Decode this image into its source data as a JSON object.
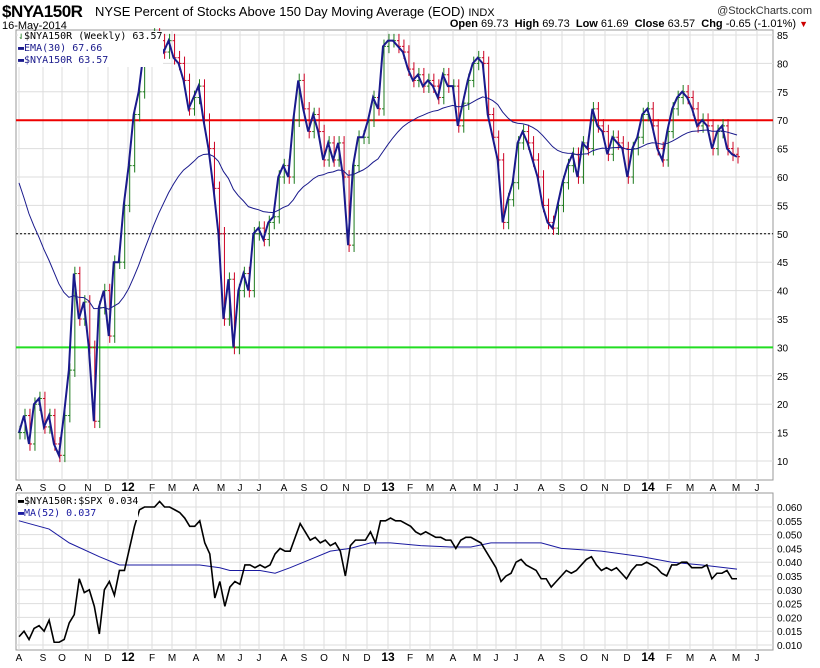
{
  "header": {
    "symbol": "$NYA150R",
    "description": "NYSE Percent of Stocks Above 150 Day Moving Average (EOD)",
    "exchange": "INDX",
    "date": "16-May-2014",
    "brand": "@StockCharts.com",
    "open_label": "Open",
    "open": "69.73",
    "high_label": "High",
    "high": "69.73",
    "low_label": "Low",
    "low": "61.69",
    "close_label": "Close",
    "close": "63.57",
    "chg_label": "Chg",
    "chg": "-0.65 (-1.01%)"
  },
  "colors": {
    "price": "#1a1a8c",
    "ema": "#1a1a8c",
    "up": "#1c7a1c",
    "down": "#cc0022",
    "red_line": "#ee0000",
    "green_line": "#22dd22",
    "ratio": "#000000",
    "ma": "#1a1aa0"
  },
  "chart_data": [
    {
      "type": "line",
      "title": "$NYA150R (Weekly) 63.57",
      "legend": [
        "$NYA150R (Weekly) 63.57",
        "EMA(30) 67.66",
        "$NYA150R 63.57"
      ],
      "ylim": [
        8,
        86
      ],
      "yticks": [
        10,
        15,
        20,
        25,
        30,
        35,
        40,
        45,
        50,
        55,
        60,
        65,
        70,
        75,
        80,
        85
      ],
      "reference_lines": [
        {
          "value": 70,
          "color": "red"
        },
        {
          "value": 50,
          "color": "black-dashed"
        },
        {
          "value": 30,
          "color": "green"
        }
      ],
      "xticks": [
        "A",
        "S",
        "O",
        "N",
        "D",
        "12",
        "F",
        "M",
        "A",
        "M",
        "J",
        "J",
        "A",
        "S",
        "O",
        "N",
        "D",
        "13",
        "F",
        "M",
        "A",
        "M",
        "J",
        "J",
        "A",
        "S",
        "O",
        "N",
        "D",
        "14",
        "F",
        "M",
        "A",
        "M",
        "J"
      ],
      "weekly_close": [
        15,
        18,
        13,
        20,
        21,
        16,
        18,
        13,
        11,
        18,
        26,
        43,
        35,
        38,
        30,
        17,
        37,
        40,
        32,
        45,
        45,
        55,
        62,
        71,
        75,
        82,
        82,
        85,
        84,
        82,
        84,
        81,
        80,
        77,
        72,
        74,
        76,
        70,
        65,
        58,
        50,
        35,
        42,
        30,
        40,
        43,
        40,
        50,
        51,
        49,
        52,
        53,
        60,
        62,
        60,
        70,
        77,
        72,
        68,
        71,
        68,
        63,
        66,
        63,
        66,
        60,
        48,
        62,
        67,
        67,
        70,
        74,
        72,
        83,
        84,
        84,
        83,
        82,
        79,
        77,
        78,
        76,
        77,
        76,
        74,
        78,
        76,
        76,
        69,
        73,
        77,
        80,
        81,
        80,
        71,
        67,
        63,
        52,
        56,
        59,
        66,
        68,
        66,
        63,
        60,
        55,
        52,
        51,
        55,
        59,
        62,
        64,
        60,
        66,
        65,
        72,
        69,
        68,
        64,
        67,
        66,
        65,
        60,
        65,
        67,
        71,
        72,
        69,
        65,
        63,
        68,
        72,
        74,
        75,
        74,
        72,
        69,
        70,
        69,
        65,
        68,
        69,
        65,
        64,
        63.57
      ],
      "ema30_seed": 62
    },
    {
      "type": "line",
      "legend": [
        "$NYA150R:$SPX 0.034",
        "MA(52) 0.037"
      ],
      "ylim": [
        0.008,
        0.0625
      ],
      "yticks": [
        "0.010",
        "0.015",
        "0.020",
        "0.025",
        "0.030",
        "0.035",
        "0.040",
        "0.045",
        "0.050",
        "0.055",
        "0.060"
      ],
      "ratio": [
        0.013,
        0.015,
        0.012,
        0.016,
        0.017,
        0.015,
        0.019,
        0.011,
        0.011,
        0.012,
        0.018,
        0.021,
        0.034,
        0.029,
        0.03,
        0.024,
        0.014,
        0.03,
        0.033,
        0.028,
        0.037,
        0.037,
        0.045,
        0.053,
        0.059,
        0.06,
        0.06,
        0.06,
        0.062,
        0.06,
        0.06,
        0.059,
        0.058,
        0.056,
        0.053,
        0.053,
        0.055,
        0.047,
        0.043,
        0.027,
        0.033,
        0.024,
        0.031,
        0.033,
        0.032,
        0.039,
        0.039,
        0.038,
        0.039,
        0.038,
        0.039,
        0.043,
        0.045,
        0.044,
        0.044,
        0.049,
        0.054,
        0.051,
        0.048,
        0.049,
        0.047,
        0.048,
        0.046,
        0.047,
        0.044,
        0.035,
        0.046,
        0.048,
        0.048,
        0.048,
        0.051,
        0.047,
        0.055,
        0.055,
        0.056,
        0.055,
        0.055,
        0.054,
        0.053,
        0.051,
        0.05,
        0.051,
        0.05,
        0.049,
        0.049,
        0.048,
        0.048,
        0.045,
        0.048,
        0.049,
        0.049,
        0.048,
        0.047,
        0.044,
        0.041,
        0.038,
        0.033,
        0.035,
        0.036,
        0.04,
        0.041,
        0.039,
        0.038,
        0.037,
        0.034,
        0.034,
        0.031,
        0.033,
        0.035,
        0.037,
        0.036,
        0.037,
        0.039,
        0.041,
        0.042,
        0.039,
        0.037,
        0.038,
        0.037,
        0.038,
        0.036,
        0.034,
        0.037,
        0.039,
        0.039,
        0.04,
        0.039,
        0.038,
        0.036,
        0.035,
        0.039,
        0.039,
        0.04,
        0.04,
        0.038,
        0.038,
        0.038,
        0.039,
        0.034,
        0.036,
        0.036,
        0.037,
        0.034,
        0.034
      ],
      "ma52": [
        [
          0,
          0.055
        ],
        [
          6,
          0.052
        ],
        [
          10,
          0.047
        ],
        [
          16,
          0.042
        ],
        [
          20,
          0.039
        ],
        [
          24,
          0.039
        ],
        [
          36,
          0.039
        ],
        [
          40,
          0.038
        ],
        [
          42,
          0.037
        ],
        [
          48,
          0.037
        ],
        [
          51,
          0.036
        ],
        [
          54,
          0.038
        ],
        [
          58,
          0.041
        ],
        [
          62,
          0.044
        ],
        [
          66,
          0.045
        ],
        [
          70,
          0.047
        ],
        [
          74,
          0.047
        ],
        [
          80,
          0.046
        ],
        [
          86,
          0.0455
        ],
        [
          90,
          0.0455
        ],
        [
          94,
          0.047
        ],
        [
          104,
          0.047
        ],
        [
          108,
          0.045
        ],
        [
          116,
          0.044
        ],
        [
          124,
          0.042
        ],
        [
          130,
          0.04
        ],
        [
          136,
          0.039
        ],
        [
          143,
          0.0375
        ]
      ]
    }
  ]
}
